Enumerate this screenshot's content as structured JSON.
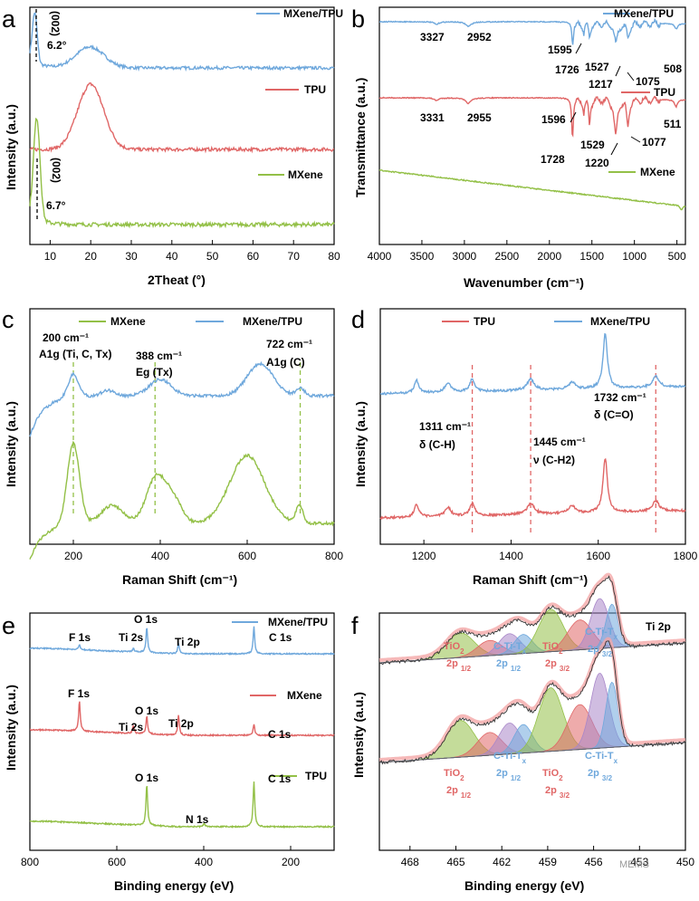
{
  "colors": {
    "mxene_tpu": "#6fa8dc",
    "tpu": "#e06666",
    "mxene": "#93c047",
    "tio2_text": "#e06666",
    "cti_text": "#6fa8dc",
    "ref_line": "#e06666"
  },
  "chart_data": [
    {
      "id": "a",
      "type": "line",
      "panel_label": "a",
      "xlabel": "2Theat (°)",
      "ylabel": "Intensity (a.u.)",
      "xlim": [
        5,
        80
      ],
      "xticks": [
        10,
        20,
        30,
        40,
        50,
        60,
        70,
        80
      ],
      "series": [
        {
          "name": "MXene/TPU",
          "color_key": "mxene_tpu",
          "peaks": [
            {
              "x": 6.2,
              "h": 1.3,
              "w": 0.6
            },
            {
              "x": 19.8,
              "h": 0.55,
              "w": 3.5
            }
          ],
          "noise": 0.04
        },
        {
          "name": "TPU",
          "color_key": "tpu",
          "peaks": [
            {
              "x": 20.0,
              "h": 1.5,
              "w": 3.2
            }
          ],
          "noise": 0.04
        },
        {
          "name": "MXene",
          "color_key": "mxene",
          "peaks": [
            {
              "x": 6.7,
              "h": 1.6,
              "w": 0.8
            }
          ],
          "noise": 0.03
        }
      ],
      "annotations": [
        {
          "text": "(002)"
        },
        {
          "text": "6.2°"
        },
        {
          "text": "(002)"
        },
        {
          "text": "6.7°"
        }
      ]
    },
    {
      "id": "b",
      "type": "line",
      "panel_label": "b",
      "xlabel": "Wavenumber (cm⁻¹)",
      "ylabel": "Transmittance (a.u.)",
      "xlim": [
        4000,
        400
      ],
      "xticks": [
        4000,
        3500,
        3000,
        2500,
        2000,
        1500,
        1000,
        500
      ],
      "series": [
        {
          "name": "MXene/TPU",
          "color_key": "mxene_tpu",
          "dips": [
            3327,
            2952,
            1726,
            1595,
            1527,
            1217,
            1075,
            508
          ]
        },
        {
          "name": "TPU",
          "color_key": "tpu",
          "dips": [
            3331,
            2955,
            1728,
            1596,
            1529,
            1220,
            1077,
            511
          ]
        },
        {
          "name": "MXene",
          "color_key": "mxene",
          "dips": []
        }
      ],
      "annotations": [
        {
          "text": "3327"
        },
        {
          "text": "2952"
        },
        {
          "text": "1595"
        },
        {
          "text": "1726"
        },
        {
          "text": "1527"
        },
        {
          "text": "1217"
        },
        {
          "text": "1075"
        },
        {
          "text": "508"
        },
        {
          "text": "3331"
        },
        {
          "text": "2955"
        },
        {
          "text": "1596"
        },
        {
          "text": "1728"
        },
        {
          "text": "1529"
        },
        {
          "text": "1220"
        },
        {
          "text": "1077"
        },
        {
          "text": "511"
        }
      ]
    },
    {
      "id": "c",
      "type": "line",
      "panel_label": "c",
      "xlabel": "Raman Shift (cm⁻¹)",
      "ylabel": "Intensity (a.u.)",
      "xlim": [
        100,
        800
      ],
      "xticks": [
        200,
        400,
        600,
        800
      ],
      "series": [
        {
          "name": "MXene",
          "color_key": "mxene",
          "peaks": [
            200,
            388,
            600,
            722
          ]
        },
        {
          "name": "MXene/TPU",
          "color_key": "mxene_tpu",
          "peaks": [
            200,
            388,
            630,
            722
          ]
        }
      ],
      "ref_lines": [
        200,
        388,
        722
      ],
      "annotations": [
        {
          "line1": "200 cm⁻¹",
          "line2": "A1g (Ti, C, Tx)"
        },
        {
          "line1": "388 cm⁻¹",
          "line2": "Eg (Tx)"
        },
        {
          "line1": "722 cm⁻¹",
          "line2": "A1g (C)"
        }
      ]
    },
    {
      "id": "d",
      "type": "line",
      "panel_label": "d",
      "xlabel": "Raman Shift (cm⁻¹)",
      "ylabel": "Intensity (a.u.)",
      "xlim": [
        1100,
        1800
      ],
      "xticks": [
        1200,
        1400,
        1600,
        1800
      ],
      "series": [
        {
          "name": "TPU",
          "color_key": "tpu",
          "peaks": [
            1183,
            1255,
            1311,
            1445,
            1540,
            1616,
            1732
          ]
        },
        {
          "name": "MXene/TPU",
          "color_key": "mxene_tpu",
          "peaks": [
            1183,
            1255,
            1311,
            1445,
            1540,
            1616,
            1732
          ]
        }
      ],
      "ref_lines": [
        1311,
        1445,
        1732
      ],
      "annotations": [
        {
          "line1": "1311 cm⁻¹",
          "line2": "δ (C-H)"
        },
        {
          "line1": "1445 cm⁻¹",
          "line2": "ν (C-H2)"
        },
        {
          "line1": "1732 cm⁻¹",
          "line2": "δ (C=O)"
        }
      ]
    },
    {
      "id": "e",
      "type": "line",
      "panel_label": "e",
      "xlabel": "Binding energy (eV)",
      "ylabel": "Intensity (a.u.)",
      "xlim": [
        800,
        100
      ],
      "xticks": [
        800,
        600,
        400,
        200
      ],
      "series": [
        {
          "name": "MXene/TPU",
          "color_key": "mxene_tpu",
          "peaks": [
            "F 1s",
            "Ti 2s",
            "O 1s",
            "Ti 2p",
            "C 1s"
          ]
        },
        {
          "name": "MXene",
          "color_key": "tpu",
          "peaks": [
            "F 1s",
            "Ti 2s",
            "O 1s",
            "Ti 2p",
            "C 1s"
          ]
        },
        {
          "name": "TPU",
          "color_key": "mxene",
          "peaks": [
            "O 1s",
            "N 1s",
            "C 1s"
          ]
        }
      ],
      "annotations": [
        {
          "text": "F 1s"
        },
        {
          "text": "Ti 2s"
        },
        {
          "text": "O 1s"
        },
        {
          "text": "Ti 2p"
        },
        {
          "text": "C 1s"
        },
        {
          "text": "F 1s"
        },
        {
          "text": "O 1s"
        },
        {
          "text": "Ti 2s"
        },
        {
          "text": "Ti 2p"
        },
        {
          "text": "C 1s"
        },
        {
          "text": "O 1s"
        },
        {
          "text": "N 1s"
        },
        {
          "text": "C 1s"
        }
      ]
    },
    {
      "id": "f",
      "type": "area",
      "panel_label": "f",
      "title": "Ti 2p",
      "xlabel": "Binding energy (eV)",
      "ylabel": "Intensity (a.u.)",
      "xlim": [
        470,
        450
      ],
      "xticks": [
        468,
        465,
        462,
        459,
        456,
        453,
        450
      ],
      "components": [
        "TiO2 2p1/2",
        "C-Ti-Tx 2p1/2",
        "TiO2 2p3/2",
        "C-Ti-Tx 2p3/2"
      ],
      "annotations": [
        {
          "main": "TiO",
          "sub": "2",
          "line2": "2p",
          "sub2": "1/2",
          "kind": "tio2"
        },
        {
          "main": "C-Ti-T",
          "sub": "x",
          "line2": "2p",
          "sub2": "1/2",
          "kind": "cti"
        },
        {
          "main": "TiO",
          "sub": "2",
          "line2": "2p",
          "sub2": "3/2",
          "kind": "tio2"
        },
        {
          "main": "C-Ti-T",
          "sub": "x",
          "line2": "2p",
          "sub2": "3/2",
          "kind": "cti"
        }
      ]
    }
  ],
  "watermark": "MEMS"
}
